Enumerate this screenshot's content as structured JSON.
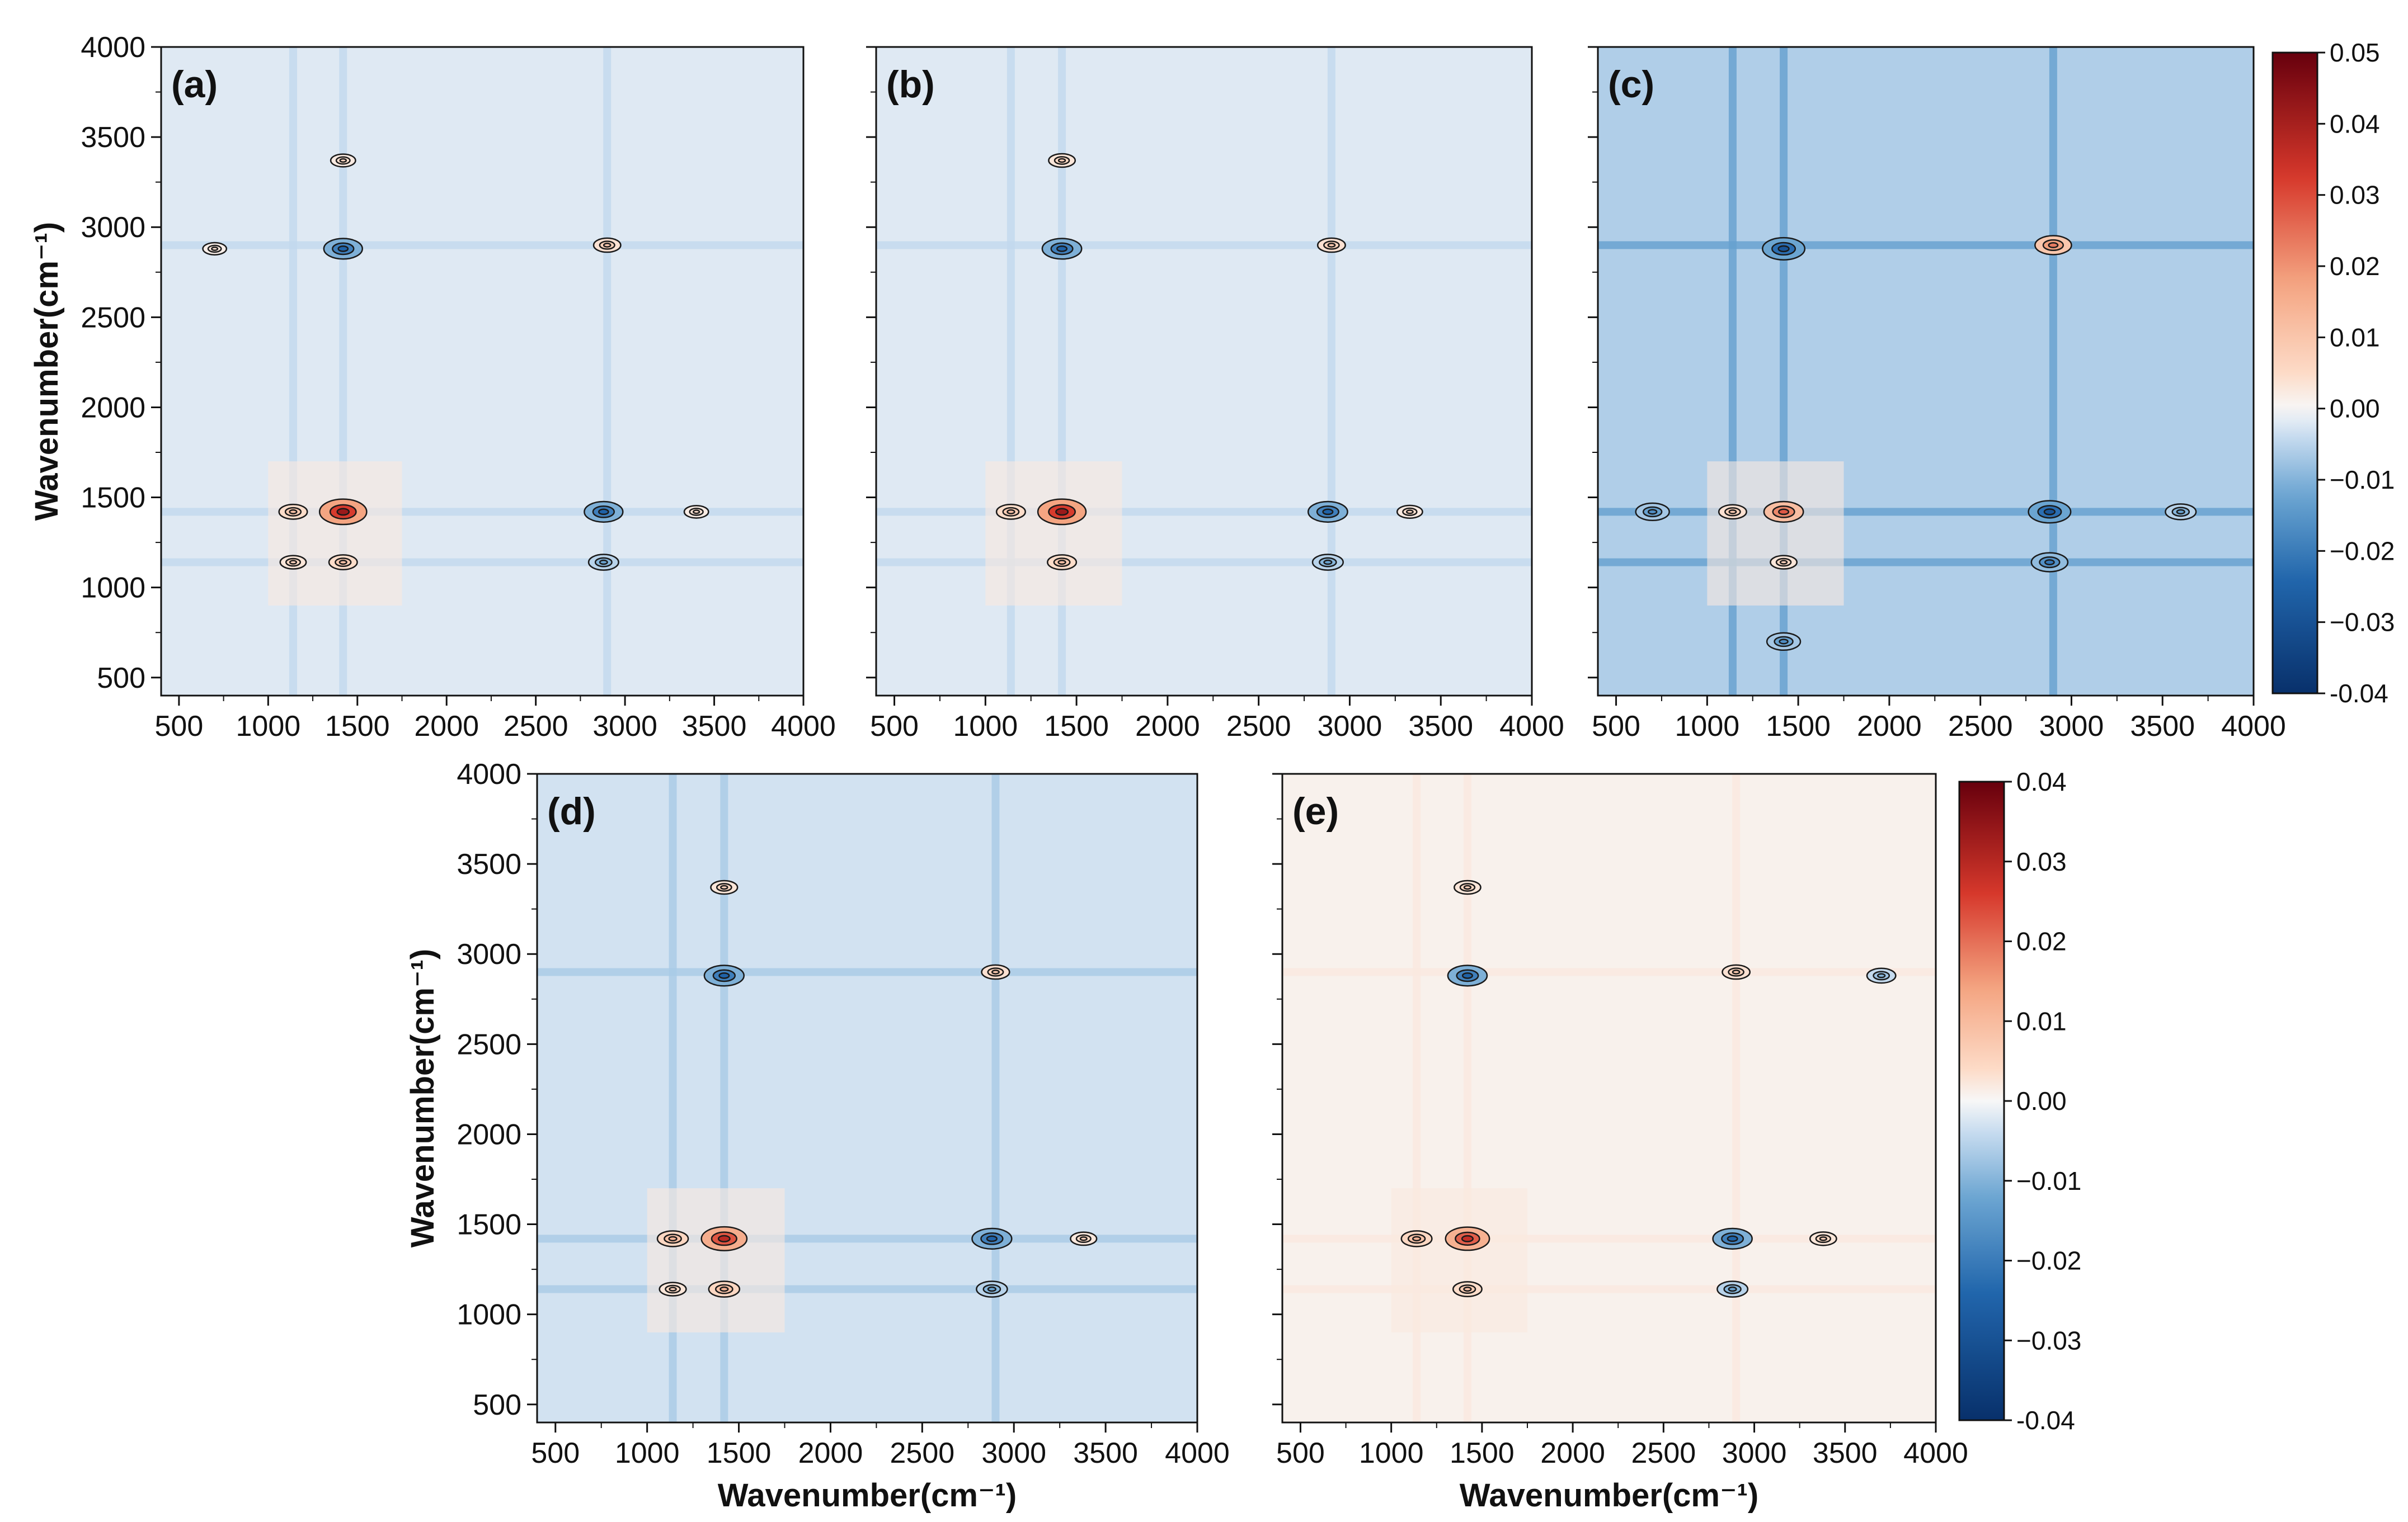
{
  "chart_data": [
    {
      "type": "heatmap",
      "panel_label": "(a)",
      "title": "",
      "xlabel": "",
      "ylabel": "Wavenumber(cm⁻¹)",
      "xlim": [
        400,
        4000
      ],
      "ylim": [
        400,
        4000
      ],
      "xticks": [
        "500",
        "1000",
        "1500",
        "2000",
        "2500",
        "3000",
        "3500",
        "4000"
      ],
      "yticks": [
        "500",
        "1000",
        "1500",
        "2000",
        "2500",
        "3000",
        "3500",
        "4000"
      ],
      "background_value": -0.002,
      "bands": [
        1420,
        1140,
        2900
      ],
      "peaks": [
        {
          "x": 1420,
          "y": 1420,
          "value": 0.045
        },
        {
          "x": 1140,
          "y": 1420,
          "value": 0.012
        },
        {
          "x": 1420,
          "y": 1140,
          "value": 0.012
        },
        {
          "x": 1140,
          "y": 1140,
          "value": 0.008
        },
        {
          "x": 1420,
          "y": 3370,
          "value": 0.006
        },
        {
          "x": 2900,
          "y": 2900,
          "value": 0.01
        },
        {
          "x": 1420,
          "y": 2880,
          "value": -0.03
        },
        {
          "x": 2880,
          "y": 1420,
          "value": -0.03
        },
        {
          "x": 2880,
          "y": 1140,
          "value": -0.015
        },
        {
          "x": 3400,
          "y": 1420,
          "value": 0.005
        },
        {
          "x": 700,
          "y": 2880,
          "value": 0.004
        }
      ]
    },
    {
      "type": "heatmap",
      "panel_label": "(b)",
      "title": "",
      "xlabel": "",
      "ylabel": "",
      "xlim": [
        400,
        4000
      ],
      "ylim": [
        400,
        4000
      ],
      "xticks": [
        "500",
        "1000",
        "1500",
        "2000",
        "2500",
        "3000",
        "3500",
        "4000"
      ],
      "yticks": [],
      "background_value": -0.002,
      "bands": [
        1420,
        1140,
        2900
      ],
      "peaks": [
        {
          "x": 1420,
          "y": 1420,
          "value": 0.045
        },
        {
          "x": 1140,
          "y": 1420,
          "value": 0.012
        },
        {
          "x": 1420,
          "y": 1140,
          "value": 0.012
        },
        {
          "x": 1420,
          "y": 3370,
          "value": 0.008
        },
        {
          "x": 2900,
          "y": 2900,
          "value": 0.01
        },
        {
          "x": 1420,
          "y": 2880,
          "value": -0.03
        },
        {
          "x": 2880,
          "y": 1420,
          "value": -0.03
        },
        {
          "x": 2880,
          "y": 1140,
          "value": -0.015
        },
        {
          "x": 3330,
          "y": 1420,
          "value": 0.006
        }
      ]
    },
    {
      "type": "heatmap",
      "panel_label": "(c)",
      "title": "",
      "xlabel": "",
      "ylabel": "",
      "xlim": [
        400,
        4000
      ],
      "ylim": [
        400,
        4000
      ],
      "xticks": [
        "500",
        "1000",
        "1500",
        "2000",
        "2500",
        "3000",
        "3500",
        "4000"
      ],
      "yticks": [],
      "background_value": -0.006,
      "bands": [
        1420,
        1140,
        2900
      ],
      "peaks": [
        {
          "x": 1420,
          "y": 1420,
          "value": 0.03
        },
        {
          "x": 1140,
          "y": 1420,
          "value": 0.01
        },
        {
          "x": 1420,
          "y": 1140,
          "value": 0.008
        },
        {
          "x": 2900,
          "y": 2900,
          "value": 0.025
        },
        {
          "x": 1420,
          "y": 2880,
          "value": -0.035
        },
        {
          "x": 2880,
          "y": 1420,
          "value": -0.035
        },
        {
          "x": 2880,
          "y": 1140,
          "value": -0.025
        },
        {
          "x": 700,
          "y": 1420,
          "value": -0.02
        },
        {
          "x": 1420,
          "y": 700,
          "value": -0.02
        },
        {
          "x": 3600,
          "y": 1420,
          "value": -0.015
        }
      ]
    },
    {
      "type": "heatmap",
      "panel_label": "(d)",
      "title": "",
      "xlabel": "Wavenumber(cm⁻¹)",
      "ylabel": "Wavenumber(cm⁻¹)",
      "xlim": [
        400,
        4000
      ],
      "ylim": [
        400,
        4000
      ],
      "xticks": [
        "500",
        "1000",
        "1500",
        "2000",
        "2500",
        "3000",
        "3500",
        "4000"
      ],
      "yticks": [
        "500",
        "1000",
        "1500",
        "2000",
        "2500",
        "3000",
        "3500",
        "4000"
      ],
      "background_value": -0.003,
      "bands": [
        1420,
        1140,
        2900
      ],
      "peaks": [
        {
          "x": 1420,
          "y": 1420,
          "value": 0.04
        },
        {
          "x": 1140,
          "y": 1420,
          "value": 0.015
        },
        {
          "x": 1420,
          "y": 1140,
          "value": 0.015
        },
        {
          "x": 1140,
          "y": 1140,
          "value": 0.008
        },
        {
          "x": 1420,
          "y": 3370,
          "value": 0.008
        },
        {
          "x": 2900,
          "y": 2900,
          "value": 0.01
        },
        {
          "x": 1420,
          "y": 2880,
          "value": -0.03
        },
        {
          "x": 2880,
          "y": 1420,
          "value": -0.03
        },
        {
          "x": 2880,
          "y": 1140,
          "value": -0.015
        },
        {
          "x": 3380,
          "y": 1420,
          "value": 0.007
        }
      ]
    },
    {
      "type": "heatmap",
      "panel_label": "(e)",
      "title": "",
      "xlabel": "Wavenumber(cm⁻¹)",
      "ylabel": "",
      "xlim": [
        400,
        4000
      ],
      "ylim": [
        400,
        4000
      ],
      "xticks": [
        "500",
        "1000",
        "1500",
        "2000",
        "2500",
        "3000",
        "3500",
        "4000"
      ],
      "yticks": [],
      "background_value": 0.001,
      "bands": [
        1420,
        1140,
        2900
      ],
      "peaks": [
        {
          "x": 1420,
          "y": 1420,
          "value": 0.038
        },
        {
          "x": 1140,
          "y": 1420,
          "value": 0.015
        },
        {
          "x": 1420,
          "y": 1140,
          "value": 0.012
        },
        {
          "x": 1420,
          "y": 3370,
          "value": 0.008
        },
        {
          "x": 2900,
          "y": 2900,
          "value": 0.01
        },
        {
          "x": 1420,
          "y": 2880,
          "value": -0.03
        },
        {
          "x": 2880,
          "y": 1420,
          "value": -0.03
        },
        {
          "x": 2880,
          "y": 1140,
          "value": -0.015
        },
        {
          "x": 3380,
          "y": 1420,
          "value": 0.008
        },
        {
          "x": 3700,
          "y": 2880,
          "value": -0.012
        }
      ]
    }
  ],
  "colorbars": [
    {
      "min": -0.04,
      "max": 0.05,
      "ticks": [
        "0.05",
        "0.04",
        "0.03",
        "0.02",
        "0.01",
        "0.00",
        "−0.01",
        "−0.02",
        "−0.03",
        "-0.04"
      ]
    },
    {
      "min": -0.04,
      "max": 0.04,
      "ticks": [
        "0.04",
        "0.03",
        "0.02",
        "0.01",
        "0.00",
        "−0.01",
        "−0.02",
        "−0.03",
        "-0.04"
      ]
    }
  ],
  "colors": {
    "negative_dark": "#0b2a5e",
    "neutral": "#f6f6f6",
    "positive_dark": "#6b0010",
    "contour": "#1a1a1a"
  }
}
